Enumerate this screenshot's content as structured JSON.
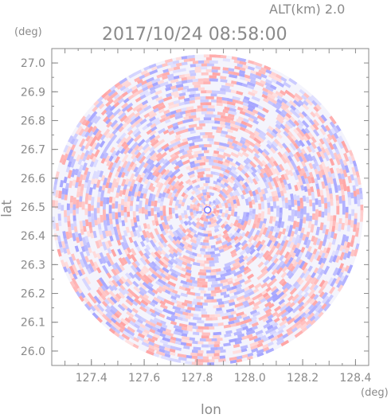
{
  "header": {
    "alt_label": "ALT(km)  2.0",
    "datetime": "2017/10/24 08:58:00",
    "y_unit": "(deg)",
    "x_unit": "(deg)"
  },
  "chart_data": {
    "type": "heatmap",
    "title": "2017/10/24 08:58:00",
    "subtitle": "ALT(km)  2.0",
    "xlabel": "lon",
    "ylabel": "lat",
    "x_unit": "(deg)",
    "y_unit": "(deg)",
    "xlim": [
      127.25,
      128.45
    ],
    "ylim": [
      25.95,
      27.05
    ],
    "x_ticks": [
      127.4,
      127.6,
      127.8,
      128.0,
      128.2,
      128.4
    ],
    "x_tick_labels": [
      "127.4",
      "127.6",
      "127.8",
      "128.0",
      "128.2",
      "128.4"
    ],
    "y_ticks": [
      26.0,
      26.1,
      26.2,
      26.3,
      26.4,
      26.5,
      26.6,
      26.7,
      26.8,
      26.9,
      27.0
    ],
    "y_tick_labels": [
      "26.0",
      "26.1",
      "26.2",
      "26.3",
      "26.4",
      "26.5",
      "26.6",
      "26.7",
      "26.8",
      "26.9",
      "27.0"
    ],
    "radar_center": {
      "lon": 127.84,
      "lat": 26.49
    },
    "radar_range_deg": {
      "lon": 0.59,
      "lat": 0.54
    },
    "grid": false,
    "colors": {
      "positive": "#ff8080",
      "negative": "#8a8aff",
      "neutral": "#f4f4fc",
      "axis": "#8a8a8a"
    }
  }
}
